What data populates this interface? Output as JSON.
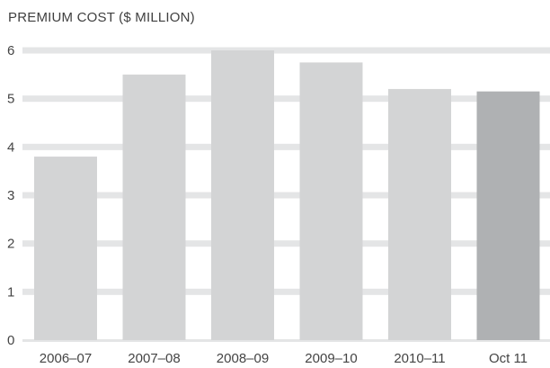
{
  "chart_data": {
    "type": "bar",
    "title": "PREMIUM COST ($ MILLION)",
    "xlabel": "",
    "ylabel": "",
    "categories": [
      "2006–07",
      "2007–08",
      "2008–09",
      "2009–10",
      "2010–11",
      "Oct 11"
    ],
    "values": [
      3.8,
      5.5,
      6.0,
      5.75,
      5.2,
      5.15
    ],
    "ylim": [
      0,
      6
    ],
    "yticks": [
      0,
      1,
      2,
      3,
      4,
      5,
      6
    ],
    "ytick_labels": [
      "0",
      "1",
      "2",
      "3",
      "4",
      "5",
      "6"
    ],
    "grid": true,
    "colors": {
      "bar": "#d3d4d5",
      "highlight_bar": "#afb1b3",
      "grid": "#e4e5e6",
      "text": "#444444"
    },
    "highlighted_category": "Oct 11"
  }
}
